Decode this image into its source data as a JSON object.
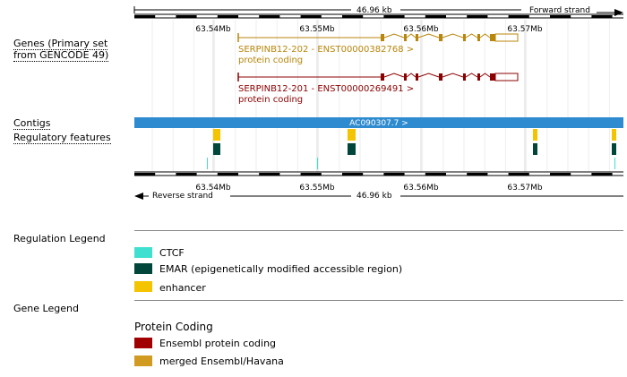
{
  "ruler": {
    "total_length": "46.96 kb",
    "forward_strand": "Forward strand",
    "reverse_strand": "Reverse strand",
    "ticks": [
      "63.54Mb",
      "63.55Mb",
      "63.56Mb",
      "63.57Mb"
    ]
  },
  "track_labels": {
    "genes": "Genes (Primary set",
    "genes_line2": "from GENCODE 49)",
    "contigs": "Contigs",
    "regulatory": "Regulatory features"
  },
  "transcripts": [
    {
      "name": "SERPINB12-202 - ENST00000382768 >",
      "biotype": "protein coding",
      "color": "#b8860b"
    },
    {
      "name": "SERPINB12-201 - ENST00000269491 >",
      "biotype": "protein coding",
      "color": "#8b0000"
    }
  ],
  "contig": {
    "name": "AC090307.7 >",
    "color": "#2e8bcf"
  },
  "regulation_legend": {
    "title": "Regulation Legend",
    "items": [
      {
        "label": "CTCF",
        "color": "#40e0d0"
      },
      {
        "label": "EMAR (epigenetically modified accessible region)",
        "color": "#00463a"
      },
      {
        "label": "enhancer",
        "color": "#f5c400"
      }
    ]
  },
  "gene_legend": {
    "title": "Gene Legend",
    "subtitle": "Protein Coding",
    "items": [
      {
        "label": "Ensembl protein coding",
        "color": "#a00000"
      },
      {
        "label": "merged Ensembl/Havana",
        "color": "#d09b20"
      }
    ]
  }
}
